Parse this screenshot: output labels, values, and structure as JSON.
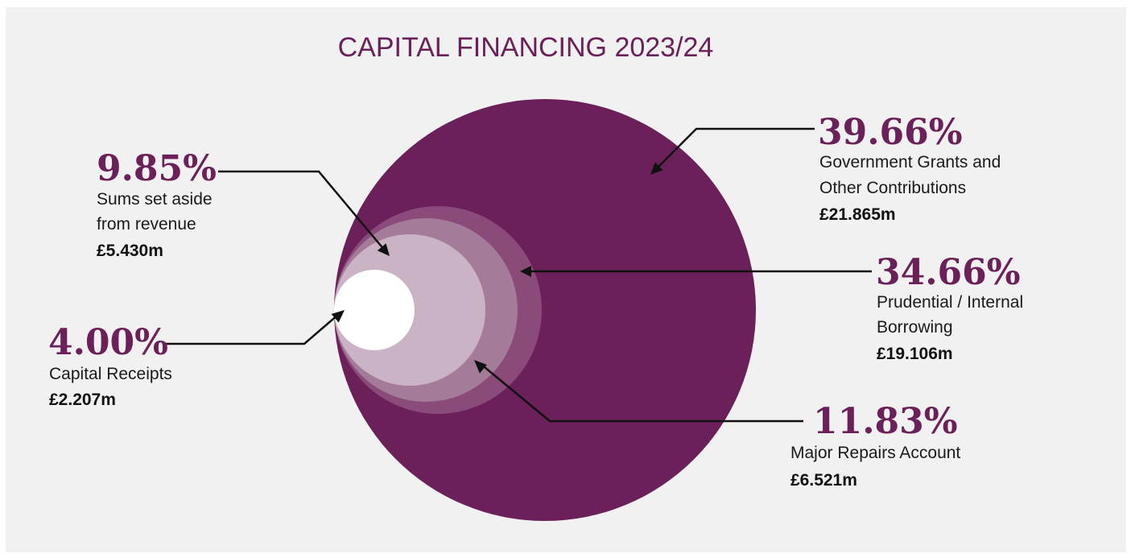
{
  "chart_data": {
    "type": "nested-circle",
    "title": "CAPITAL FINANCING 2023/24",
    "series": [
      {
        "name": "Government Grants and Other Contributions",
        "label_lines": [
          "Government Grants and",
          "Other Contributions"
        ],
        "percent": 39.66,
        "percent_label": "39.66%",
        "amount_label": "£21.865m",
        "amount_m": 21.865,
        "color": "#6c2059"
      },
      {
        "name": "Prudential / Internal Borrowing",
        "label_lines": [
          "Prudential / Internal",
          "Borrowing"
        ],
        "percent": 34.66,
        "percent_label": "34.66%",
        "amount_label": "£19.106m",
        "amount_m": 19.106,
        "color": "#8a4a7a"
      },
      {
        "name": "Major Repairs Account",
        "label_lines": [
          "Major Repairs Account"
        ],
        "percent": 11.83,
        "percent_label": "11.83%",
        "amount_label": "£6.521m",
        "amount_m": 6.521,
        "color": "#a47c99"
      },
      {
        "name": "Sums set aside from revenue",
        "label_lines": [
          "Sums set aside",
          "from revenue"
        ],
        "percent": 9.85,
        "percent_label": "9.85%",
        "amount_label": "£5.430m",
        "amount_m": 5.43,
        "color": "#cbb3c6"
      },
      {
        "name": "Capital Receipts",
        "label_lines": [
          "Capital Receipts"
        ],
        "percent": 4.0,
        "percent_label": "4.00%",
        "amount_label": "£2.207m",
        "amount_m": 2.207,
        "color": "#ffffff"
      }
    ]
  }
}
